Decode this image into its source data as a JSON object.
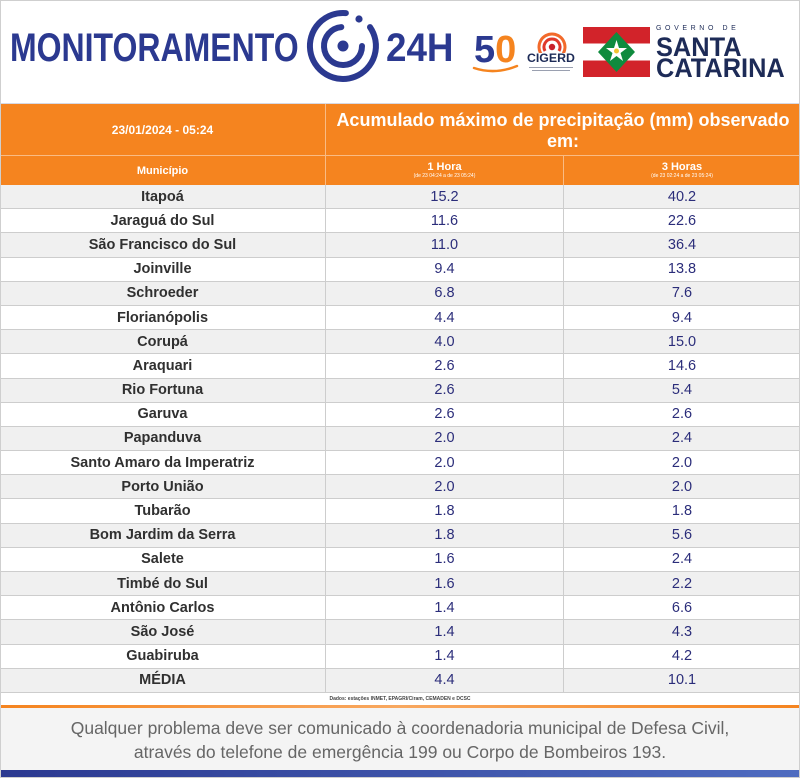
{
  "header": {
    "title": "MONITORAMENTO",
    "title_suffix": "24H",
    "logo_50": "50",
    "cigerd": "CIGERD",
    "gov_label": "GOVERNO DE",
    "state_line1": "SANTA",
    "state_line2": "CATARINA"
  },
  "footer": {
    "line1": "Qualquer problema deve ser comunicado à coordenadoria municipal de Defesa Civil,",
    "line2": "através do telefone de emergência 199 ou Corpo de Bombeiros 193."
  },
  "colors": {
    "navy": "#2b3990",
    "orange": "#f5841f",
    "value_blue": "#2b2d7a",
    "text_dark": "#303030",
    "footer_text": "#666666",
    "row_alt": "#f0f0f0"
  },
  "icons": {
    "radar": "radar-logo-icon",
    "cigerd": "cigerd-logo-icon",
    "flag": "santa-catarina-flag-icon"
  },
  "chart_data": {
    "type": "table",
    "timestamp": "23/01/2024 - 05:24",
    "title": "Acumulado máximo de precipitação (mm) observado em:",
    "columns": [
      "Município",
      "1 Hora",
      "3 Horas"
    ],
    "column_ranges": {
      "1h": "(de 23 04:24 a de 23 05:24)",
      "3h": "(de 23 02:24 a de 23 05:24)"
    },
    "rows": [
      [
        "Itapoá",
        15.2,
        40.2
      ],
      [
        "Jaraguá do Sul",
        11.6,
        22.6
      ],
      [
        "São Francisco do Sul",
        11.0,
        36.4
      ],
      [
        "Joinville",
        9.4,
        13.8
      ],
      [
        "Schroeder",
        6.8,
        7.6
      ],
      [
        "Florianópolis",
        4.4,
        9.4
      ],
      [
        "Corupá",
        4.0,
        15.0
      ],
      [
        "Araquari",
        2.6,
        14.6
      ],
      [
        "Rio Fortuna",
        2.6,
        5.4
      ],
      [
        "Garuva",
        2.6,
        2.6
      ],
      [
        "Papanduva",
        2.0,
        2.4
      ],
      [
        "Santo Amaro da Imperatriz",
        2.0,
        2.0
      ],
      [
        "Porto União",
        2.0,
        2.0
      ],
      [
        "Tubarão",
        1.8,
        1.8
      ],
      [
        "Bom Jardim da Serra",
        1.8,
        5.6
      ],
      [
        "Salete",
        1.6,
        2.4
      ],
      [
        "Timbé do Sul",
        1.6,
        2.2
      ],
      [
        "Antônio Carlos",
        1.4,
        6.6
      ],
      [
        "São José",
        1.4,
        4.3
      ],
      [
        "Guabiruba",
        1.4,
        4.2
      ]
    ],
    "average_row": [
      "MÉDIA",
      4.4,
      10.1
    ],
    "source": "Dados: estações INMET, EPAGRI/Ciram, CEMADEN e DCSC"
  }
}
